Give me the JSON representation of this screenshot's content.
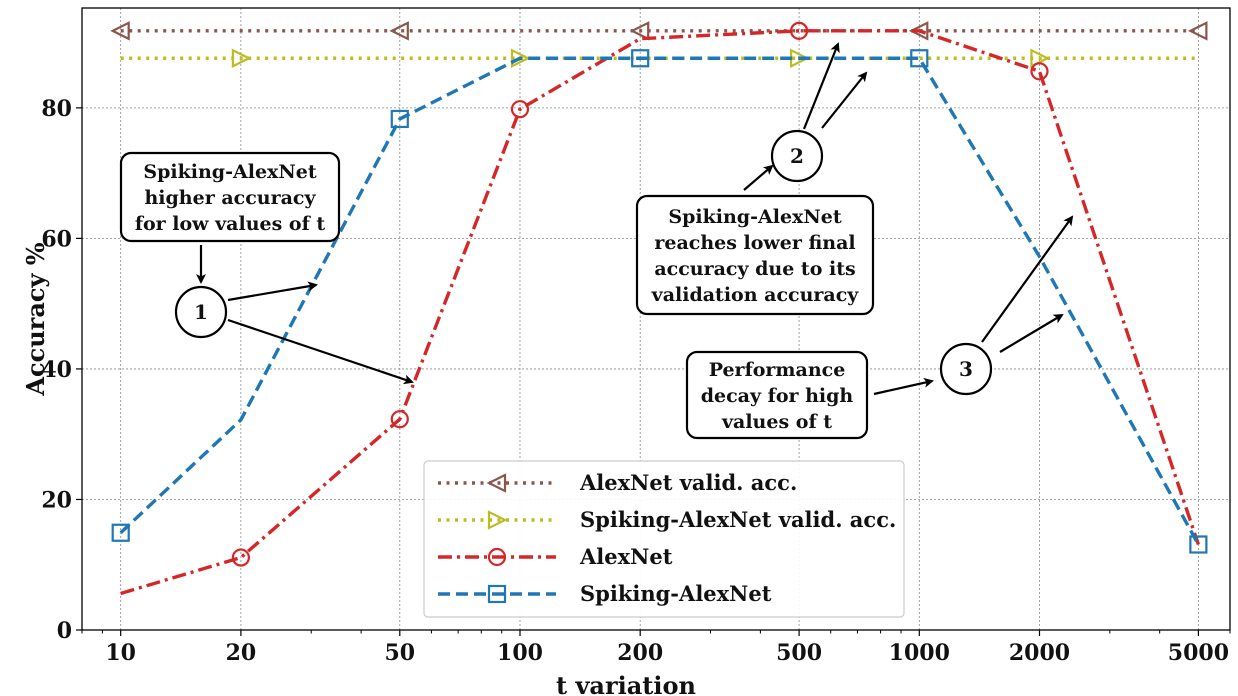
{
  "chart_data": {
    "type": "line",
    "xlabel": "t variation",
    "ylabel": "Accuracy %",
    "x_scale": "log",
    "x": [
      10,
      20,
      50,
      100,
      200,
      500,
      1000,
      2000,
      5000
    ],
    "x_tick_labels": [
      "10",
      "20",
      "50",
      "100",
      "200",
      "500",
      "1000",
      "2000",
      "5000"
    ],
    "y_ticks": [
      0,
      20,
      40,
      60,
      80
    ],
    "xlim": [
      8,
      6000
    ],
    "ylim": [
      0,
      95.3
    ],
    "grid": true,
    "legend_position": "bottom-center",
    "series": [
      {
        "name": "AlexNet valid. acc.",
        "style": "dotted",
        "marker": "triangle-left",
        "color": "#8c564b",
        "values": [
          91.8,
          91.8,
          91.8,
          91.8,
          91.8,
          91.8,
          91.8,
          91.8,
          91.8
        ]
      },
      {
        "name": "Spiking-AlexNet valid. acc.",
        "style": "dotted",
        "marker": "triangle-right",
        "color": "#bcbd22",
        "values": [
          87.6,
          87.6,
          87.6,
          87.6,
          87.6,
          87.6,
          87.6,
          87.6,
          87.6
        ]
      },
      {
        "name": "AlexNet",
        "style": "dashdot",
        "marker": "circle",
        "color": "#d62728",
        "values": [
          5.6,
          11.1,
          32.3,
          79.8,
          90.6,
          91.8,
          91.8,
          85.6,
          13.1
        ]
      },
      {
        "name": "Spiking-AlexNet",
        "style": "dashed",
        "marker": "square",
        "color": "#1f77b4",
        "values": [
          14.9,
          32.2,
          78.3,
          87.6,
          87.6,
          87.6,
          87.6,
          57.2,
          13.1
        ]
      }
    ],
    "annotations": [
      {
        "id": "1",
        "lines": [
          "Spiking-AlexNet",
          "higher accuracy",
          "for low values of t"
        ]
      },
      {
        "id": "2",
        "lines": [
          "Spiking-AlexNet",
          "reaches lower final",
          "accuracy due to its",
          "validation accuracy"
        ]
      },
      {
        "id": "3",
        "lines": [
          "Performance",
          "decay for high",
          "values of t"
        ]
      }
    ]
  }
}
